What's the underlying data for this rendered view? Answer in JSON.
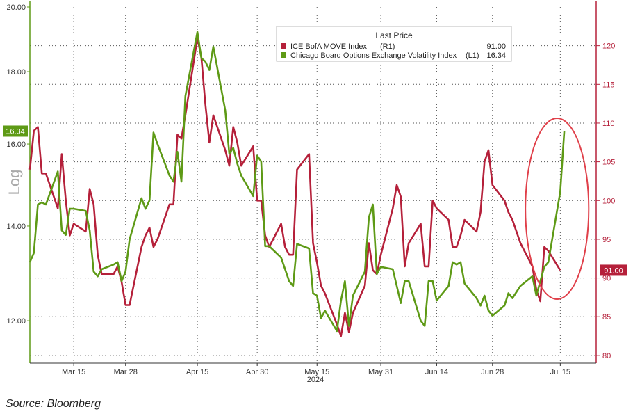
{
  "chart_data": {
    "type": "line",
    "legend": {
      "title": "Last Price",
      "placement": "top-center",
      "entries": [
        {
          "label": "ICE BofA MOVE Index",
          "axis_tag": "(R1)",
          "value": "91.00",
          "color": "#b5203a"
        },
        {
          "label": "Chicago Board Options Exchange Volatility Index",
          "axis_tag": "(L1)",
          "value": "16.34",
          "color": "#5e9a16"
        }
      ]
    },
    "left_axis": {
      "label": "Log",
      "scale": "log",
      "range": [
        11.2,
        20.0
      ],
      "ticks": [
        "20.00",
        "18.00",
        "16.00",
        "14.00",
        "12.00"
      ],
      "tick_values": [
        20,
        18,
        16,
        14,
        12
      ],
      "last_value_tag": "16.34",
      "color": "#5e9a16"
    },
    "right_axis": {
      "range": [
        79,
        125
      ],
      "ticks": [
        "120",
        "115",
        "110",
        "105",
        "100",
        "95",
        "90",
        "85",
        "80"
      ],
      "tick_values": [
        120,
        115,
        110,
        105,
        100,
        95,
        90,
        85,
        80
      ],
      "last_value_tag": "91.00",
      "color": "#b5203a"
    },
    "x_axis": {
      "ticks": [
        "Mar 15",
        "Mar 28",
        "Apr 15",
        "Apr 30",
        "May 15",
        "May 31",
        "Jun 14",
        "Jun 28",
        "Jul 15"
      ],
      "tick_dates": [
        "2024-03-15",
        "2024-03-28",
        "2024-04-15",
        "2024-04-30",
        "2024-05-15",
        "2024-05-31",
        "2024-06-14",
        "2024-06-28",
        "2024-07-15"
      ],
      "range": [
        "2024-03-04",
        "2024-07-24"
      ],
      "year_label": "2024"
    },
    "grid": true,
    "series": [
      {
        "name": "ICE BofA MOVE Index",
        "axis": "right",
        "color": "#b5203a",
        "points": [
          [
            "2024-03-04",
            104.0
          ],
          [
            "2024-03-05",
            109.0
          ],
          [
            "2024-03-06",
            109.5
          ],
          [
            "2024-03-07",
            103.5
          ],
          [
            "2024-03-08",
            103.5
          ],
          [
            "2024-03-11",
            99.0
          ],
          [
            "2024-03-12",
            106.0
          ],
          [
            "2024-03-13",
            100.0
          ],
          [
            "2024-03-14",
            95.5
          ],
          [
            "2024-03-15",
            97.0
          ],
          [
            "2024-03-18",
            96.0
          ],
          [
            "2024-03-19",
            101.5
          ],
          [
            "2024-03-20",
            99.5
          ],
          [
            "2024-03-21",
            93.0
          ],
          [
            "2024-03-22",
            90.5
          ],
          [
            "2024-03-25",
            90.5
          ],
          [
            "2024-03-26",
            91.5
          ],
          [
            "2024-03-27",
            89.5
          ],
          [
            "2024-03-28",
            86.5
          ],
          [
            "2024-03-29",
            86.5
          ],
          [
            "2024-04-01",
            94.0
          ],
          [
            "2024-04-02",
            95.5
          ],
          [
            "2024-04-03",
            96.5
          ],
          [
            "2024-04-04",
            94.0
          ],
          [
            "2024-04-05",
            95.0
          ],
          [
            "2024-04-08",
            99.5
          ],
          [
            "2024-04-09",
            99.5
          ],
          [
            "2024-04-10",
            108.5
          ],
          [
            "2024-04-11",
            108.0
          ],
          [
            "2024-04-12",
            111.0
          ],
          [
            "2024-04-15",
            121.0
          ],
          [
            "2024-04-16",
            118.5
          ],
          [
            "2024-04-17",
            112.5
          ],
          [
            "2024-04-18",
            107.5
          ],
          [
            "2024-04-19",
            111.0
          ],
          [
            "2024-04-22",
            106.5
          ],
          [
            "2024-04-23",
            104.5
          ],
          [
            "2024-04-24",
            109.5
          ],
          [
            "2024-04-25",
            107.5
          ],
          [
            "2024-04-26",
            104.5
          ],
          [
            "2024-04-29",
            107.0
          ],
          [
            "2024-04-30",
            100.0
          ],
          [
            "2024-05-01",
            100.0
          ],
          [
            "2024-05-02",
            95.5
          ],
          [
            "2024-05-03",
            94.0
          ],
          [
            "2024-05-06",
            97.0
          ],
          [
            "2024-05-07",
            94.0
          ],
          [
            "2024-05-08",
            93.0
          ],
          [
            "2024-05-09",
            93.0
          ],
          [
            "2024-05-10",
            104.0
          ],
          [
            "2024-05-13",
            106.0
          ],
          [
            "2024-05-14",
            94.5
          ],
          [
            "2024-05-15",
            92.0
          ],
          [
            "2024-05-16",
            89.0
          ],
          [
            "2024-05-17",
            88.0
          ],
          [
            "2024-05-20",
            84.0
          ],
          [
            "2024-05-21",
            82.5
          ],
          [
            "2024-05-22",
            85.5
          ],
          [
            "2024-05-23",
            83.0
          ],
          [
            "2024-05-24",
            85.5
          ],
          [
            "2024-05-27",
            89.0
          ],
          [
            "2024-05-28",
            94.5
          ],
          [
            "2024-05-29",
            91.0
          ],
          [
            "2024-05-30",
            90.5
          ],
          [
            "2024-05-31",
            93.0
          ],
          [
            "2024-06-03",
            99.0
          ],
          [
            "2024-06-04",
            102.0
          ],
          [
            "2024-06-05",
            100.5
          ],
          [
            "2024-06-06",
            91.5
          ],
          [
            "2024-06-07",
            94.5
          ],
          [
            "2024-06-10",
            97.0
          ],
          [
            "2024-06-11",
            91.5
          ],
          [
            "2024-06-12",
            91.5
          ],
          [
            "2024-06-13",
            100.0
          ],
          [
            "2024-06-14",
            99.0
          ],
          [
            "2024-06-17",
            97.5
          ],
          [
            "2024-06-18",
            94.0
          ],
          [
            "2024-06-19",
            94.0
          ],
          [
            "2024-06-20",
            95.5
          ],
          [
            "2024-06-21",
            97.5
          ],
          [
            "2024-06-24",
            96.0
          ],
          [
            "2024-06-25",
            98.5
          ],
          [
            "2024-06-26",
            105.0
          ],
          [
            "2024-06-27",
            106.5
          ],
          [
            "2024-06-28",
            102.0
          ],
          [
            "2024-07-01",
            100.0
          ],
          [
            "2024-07-02",
            98.5
          ],
          [
            "2024-07-03",
            97.5
          ],
          [
            "2024-07-05",
            94.5
          ],
          [
            "2024-07-08",
            91.5
          ],
          [
            "2024-07-09",
            88.5
          ],
          [
            "2024-07-10",
            87.0
          ],
          [
            "2024-07-11",
            94.0
          ],
          [
            "2024-07-12",
            93.5
          ],
          [
            "2024-07-15",
            91.0
          ]
        ]
      },
      {
        "name": "Chicago Board Options Exchange Volatility Index",
        "axis": "left",
        "color": "#5e9a16",
        "points": [
          [
            "2024-03-04",
            13.2
          ],
          [
            "2024-03-05",
            13.4
          ],
          [
            "2024-03-06",
            14.5
          ],
          [
            "2024-03-07",
            14.55
          ],
          [
            "2024-03-08",
            14.5
          ],
          [
            "2024-03-11",
            15.3
          ],
          [
            "2024-03-12",
            13.9
          ],
          [
            "2024-03-13",
            13.8
          ],
          [
            "2024-03-14",
            14.4
          ],
          [
            "2024-03-15",
            14.4
          ],
          [
            "2024-03-18",
            14.35
          ],
          [
            "2024-03-19",
            13.9
          ],
          [
            "2024-03-20",
            13.0
          ],
          [
            "2024-03-21",
            12.9
          ],
          [
            "2024-03-22",
            13.05
          ],
          [
            "2024-03-25",
            13.15
          ],
          [
            "2024-03-26",
            13.2
          ],
          [
            "2024-03-27",
            12.8
          ],
          [
            "2024-03-28",
            13.0
          ],
          [
            "2024-03-29",
            13.7
          ],
          [
            "2024-04-01",
            14.65
          ],
          [
            "2024-04-02",
            14.4
          ],
          [
            "2024-04-03",
            14.6
          ],
          [
            "2024-04-04",
            16.3
          ],
          [
            "2024-04-05",
            16.0
          ],
          [
            "2024-04-08",
            15.2
          ],
          [
            "2024-04-09",
            15.05
          ],
          [
            "2024-04-10",
            15.8
          ],
          [
            "2024-04-11",
            15.05
          ],
          [
            "2024-04-12",
            17.3
          ],
          [
            "2024-04-15",
            19.2
          ],
          [
            "2024-04-16",
            18.4
          ],
          [
            "2024-04-17",
            18.3
          ],
          [
            "2024-04-18",
            18.05
          ],
          [
            "2024-04-19",
            18.75
          ],
          [
            "2024-04-22",
            16.9
          ],
          [
            "2024-04-23",
            15.75
          ],
          [
            "2024-04-24",
            15.9
          ],
          [
            "2024-04-25",
            15.5
          ],
          [
            "2024-04-26",
            15.2
          ],
          [
            "2024-04-29",
            14.7
          ],
          [
            "2024-04-30",
            15.7
          ],
          [
            "2024-05-01",
            15.55
          ],
          [
            "2024-05-02",
            13.55
          ],
          [
            "2024-05-03",
            13.55
          ],
          [
            "2024-05-06",
            13.3
          ],
          [
            "2024-05-07",
            13.05
          ],
          [
            "2024-05-08",
            12.8
          ],
          [
            "2024-05-09",
            12.7
          ],
          [
            "2024-05-10",
            13.6
          ],
          [
            "2024-05-13",
            13.5
          ],
          [
            "2024-05-14",
            12.55
          ],
          [
            "2024-05-15",
            12.5
          ],
          [
            "2024-05-16",
            12.05
          ],
          [
            "2024-05-17",
            12.2
          ],
          [
            "2024-05-20",
            11.8
          ],
          [
            "2024-05-21",
            12.4
          ],
          [
            "2024-05-22",
            12.8
          ],
          [
            "2024-05-23",
            11.9
          ],
          [
            "2024-05-24",
            12.5
          ],
          [
            "2024-05-27",
            13.0
          ],
          [
            "2024-05-28",
            14.2
          ],
          [
            "2024-05-29",
            14.5
          ],
          [
            "2024-05-30",
            12.95
          ],
          [
            "2024-05-31",
            13.1
          ],
          [
            "2024-06-03",
            13.05
          ],
          [
            "2024-06-04",
            12.7
          ],
          [
            "2024-06-05",
            12.35
          ],
          [
            "2024-06-06",
            12.8
          ],
          [
            "2024-06-07",
            12.8
          ],
          [
            "2024-06-10",
            12.0
          ],
          [
            "2024-06-11",
            11.9
          ],
          [
            "2024-06-12",
            12.8
          ],
          [
            "2024-06-13",
            12.8
          ],
          [
            "2024-06-14",
            12.4
          ],
          [
            "2024-06-17",
            12.7
          ],
          [
            "2024-06-18",
            13.2
          ],
          [
            "2024-06-19",
            13.15
          ],
          [
            "2024-06-20",
            13.2
          ],
          [
            "2024-06-21",
            12.75
          ],
          [
            "2024-06-24",
            12.45
          ],
          [
            "2024-06-25",
            12.3
          ],
          [
            "2024-06-26",
            12.5
          ],
          [
            "2024-06-27",
            12.2
          ],
          [
            "2024-06-28",
            12.1
          ],
          [
            "2024-07-01",
            12.3
          ],
          [
            "2024-07-02",
            12.55
          ],
          [
            "2024-07-03",
            12.45
          ],
          [
            "2024-07-05",
            12.7
          ],
          [
            "2024-07-08",
            12.9
          ],
          [
            "2024-07-09",
            12.5
          ],
          [
            "2024-07-10",
            12.8
          ],
          [
            "2024-07-11",
            13.1
          ],
          [
            "2024-07-12",
            13.2
          ],
          [
            "2024-07-15",
            14.8
          ],
          [
            "2024-07-16",
            16.34
          ]
        ]
      }
    ],
    "annotation": {
      "type": "ellipse",
      "color": "#e0404a",
      "cx_date": "2024-07-14",
      "cy_value": 16.2,
      "note_date_span": [
        "2024-07-08",
        "2024-07-19"
      ]
    }
  },
  "source": "Source: Bloomberg"
}
